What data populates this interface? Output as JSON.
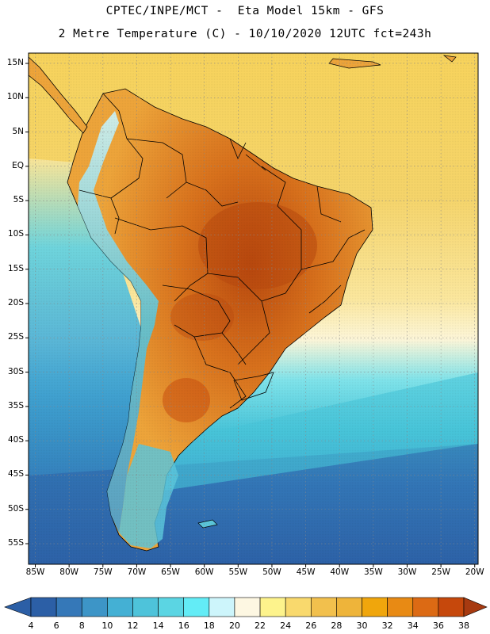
{
  "header": {
    "line1": "CPTEC/INPE/MCT -  Eta Model 15km - GFS",
    "line2": "2 Metre Temperature (C) - 10/10/2020 12UTC fct=243h"
  },
  "map": {
    "lat_labels": [
      "15N",
      "10N",
      "5N",
      "EQ",
      "5S",
      "10S",
      "15S",
      "20S",
      "25S",
      "30S",
      "35S",
      "40S",
      "45S",
      "50S",
      "55S"
    ],
    "lon_labels": [
      "85W",
      "80W",
      "75W",
      "70W",
      "65W",
      "60W",
      "55W",
      "50W",
      "45W",
      "40W",
      "35W",
      "30W",
      "25W",
      "20W"
    ],
    "extent": {
      "lon": [
        -86,
        -19.5
      ],
      "lat": [
        -58,
        16.5
      ]
    },
    "ocean_colors": {
      "tropical_north": "#f7d35c",
      "tropical_mid": "#f5d46a",
      "subtropical": "#fbe79d",
      "transition": "#fdf6d8",
      "cool": "#7fe3ea",
      "mid_cool": "#48c4d9",
      "cold": "#3a8fc9",
      "coldest": "#2d62a8"
    },
    "land_colors": {
      "andes": "#5cc6da",
      "warm": "#eda43a",
      "hot": "#d8711c",
      "hottest": "#b8480e"
    }
  },
  "colorbar": {
    "ticks": [
      "4",
      "6",
      "8",
      "10",
      "12",
      "14",
      "16",
      "18",
      "20",
      "22",
      "24",
      "26",
      "28",
      "30",
      "32",
      "34",
      "36",
      "38"
    ],
    "colors": [
      "#2c5fa6",
      "#3578b8",
      "#3d95c7",
      "#44b0d4",
      "#4ec3da",
      "#5bd5e3",
      "#63ecf6",
      "#cdf5fb",
      "#fdf7e2",
      "#fdf38c",
      "#f9d96d",
      "#f2c04d",
      "#eeb43a",
      "#f0a60c",
      "#e88a14",
      "#dc6a14",
      "#c6480c",
      "#a73a10"
    ]
  }
}
